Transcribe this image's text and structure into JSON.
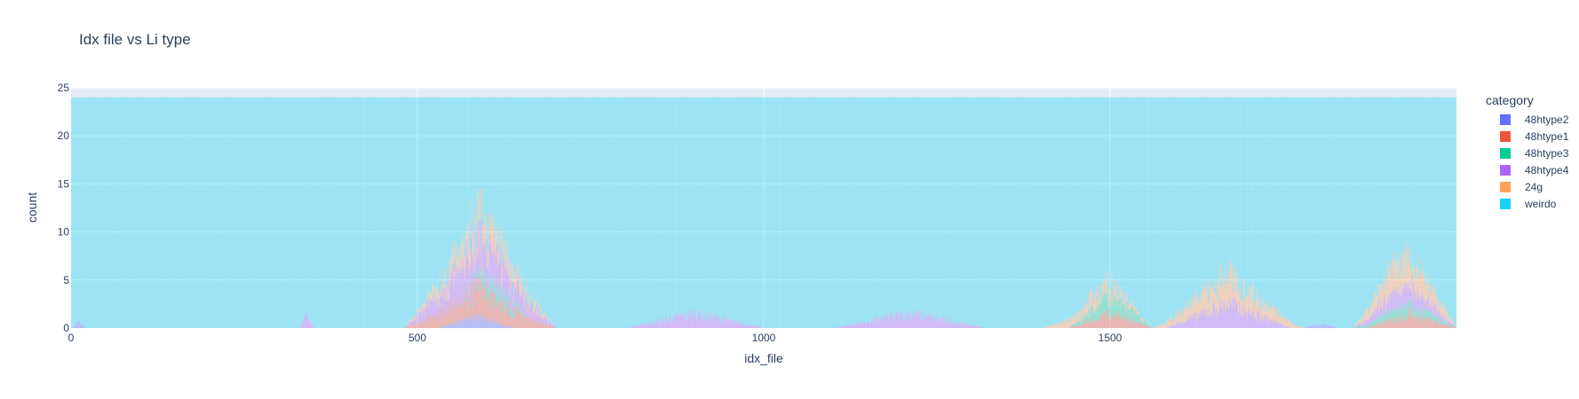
{
  "chart_data": {
    "type": "bar",
    "barmode": "stack",
    "title": "Idx file vs Li type",
    "xlabel": "idx_file",
    "ylabel": "count",
    "xlim": [
      0,
      2000
    ],
    "ylim": [
      0,
      25
    ],
    "x_ticks": [
      0,
      500,
      1000,
      1500
    ],
    "x_tick_labels": [
      "0",
      "500",
      "1000",
      "1500"
    ],
    "y_ticks": [
      0,
      5,
      10,
      15,
      20,
      25
    ],
    "y_tick_labels": [
      "0",
      "5",
      "10",
      "15",
      "20",
      "25"
    ],
    "grid": true,
    "legend": {
      "title": "category",
      "position": "right"
    },
    "series": [
      {
        "name": "48htype2",
        "color": "#636efa",
        "clusters": [
          {
            "x": [
              0,
              20
            ],
            "peak": 0.7
          },
          {
            "x": [
              530,
              640
            ],
            "peak": 1.2
          },
          {
            "x": [
              1780,
              1830
            ],
            "peak": 0.5
          }
        ]
      },
      {
        "name": "48htype1",
        "color": "#ef553b",
        "clusters": [
          {
            "x": [
              480,
              700
            ],
            "peak": 3.0
          },
          {
            "x": [
              1440,
              1560
            ],
            "peak": 1.5
          },
          {
            "x": [
              1870,
              2000
            ],
            "peak": 1.5
          }
        ]
      },
      {
        "name": "48htype3",
        "color": "#00cc96",
        "clusters": [
          {
            "x": [
              560,
              660
            ],
            "peak": 1.5
          },
          {
            "x": [
              1440,
              1560
            ],
            "peak": 2.0
          },
          {
            "x": [
              1850,
              2000
            ],
            "peak": 1.2
          }
        ]
      },
      {
        "name": "48htype4",
        "color": "#ab63fa",
        "clusters": [
          {
            "x": [
              330,
              350
            ],
            "peak": 1.5
          },
          {
            "x": [
              480,
              700
            ],
            "peak": 4.0
          },
          {
            "x": [
              800,
              1000
            ],
            "peak": 1.5
          },
          {
            "x": [
              1100,
              1320
            ],
            "peak": 1.5
          },
          {
            "x": [
              1580,
              1760
            ],
            "peak": 2.5
          },
          {
            "x": [
              1850,
              2000
            ],
            "peak": 2.0
          }
        ]
      },
      {
        "name": "24g",
        "color": "#ffa15a",
        "clusters": [
          {
            "x": [
              480,
              700
            ],
            "peak": 2.5
          },
          {
            "x": [
              1400,
              1560
            ],
            "peak": 1.5
          },
          {
            "x": [
              1560,
              1780
            ],
            "peak": 3.0
          },
          {
            "x": [
              1850,
              2000
            ],
            "peak": 3.5
          }
        ]
      },
      {
        "name": "weirdo",
        "color": "#19d3f3",
        "total": 24
      }
    ]
  }
}
